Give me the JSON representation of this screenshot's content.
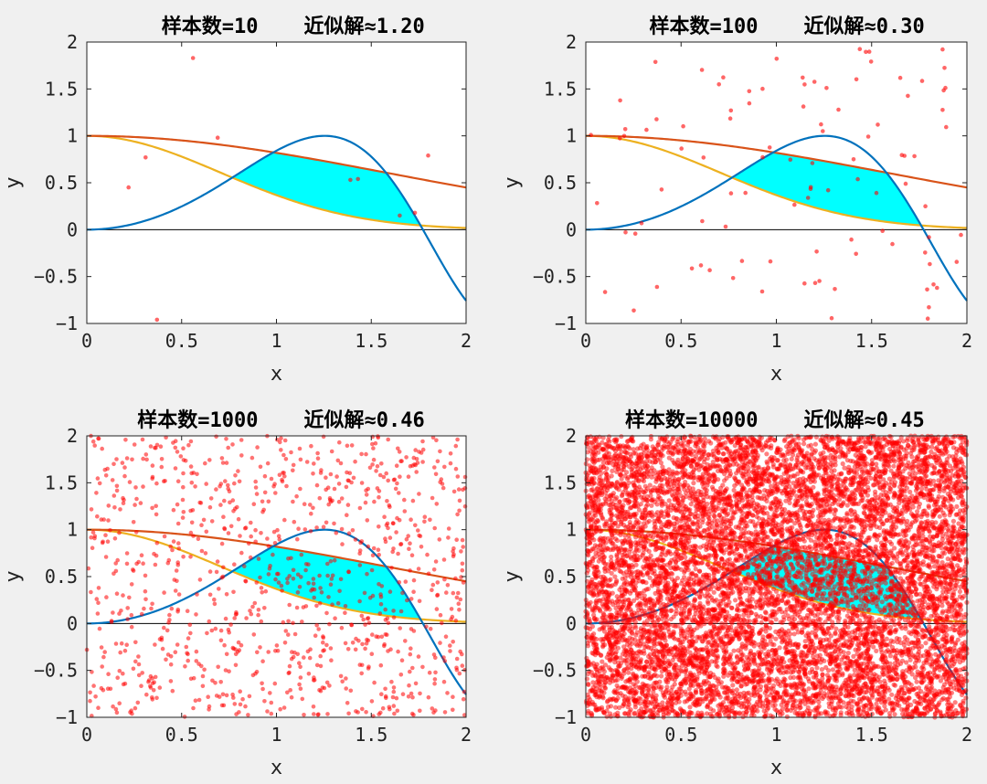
{
  "colors": {
    "background": "#f0f0f0",
    "axes_bg": "#ffffff",
    "target_curve": "#0072BD",
    "upper_curve": "#D95319",
    "lower_curve": "#EDB120",
    "fill_region": "#00FFFF",
    "sample_points": "#FF0000",
    "zero_line": "#000000"
  },
  "chart_data": [
    {
      "type": "scatter",
      "title_left": "样本数=10",
      "title_right": "近似解≈1.20",
      "samples": 10,
      "estimate": 1.2,
      "xlabel": "x",
      "ylabel": "y",
      "xlim": [
        0,
        2
      ],
      "ylim": [
        -1,
        2
      ],
      "xticks": [
        "0",
        "0.5",
        "1",
        "1.5",
        "2"
      ],
      "yticks": [
        "-1",
        "-0.5",
        "0",
        "0.5",
        "1",
        "1.5",
        "2"
      ],
      "grid": false,
      "curves": [
        "y = sin(x^2)·...",
        "upper",
        "lower"
      ],
      "points": [
        [
          0.22,
          0.45
        ],
        [
          0.31,
          0.77
        ],
        [
          0.37,
          -0.96
        ],
        [
          0.56,
          1.83
        ],
        [
          0.69,
          0.98
        ],
        [
          1.39,
          0.53
        ],
        [
          1.43,
          0.54
        ],
        [
          1.65,
          0.15
        ],
        [
          1.73,
          0.18
        ],
        [
          1.8,
          0.79
        ]
      ]
    },
    {
      "type": "scatter",
      "title_left": "样本数=100",
      "title_right": "近似解≈0.30",
      "samples": 100,
      "estimate": 0.3,
      "xlabel": "x",
      "ylabel": "y",
      "xlim": [
        0,
        2
      ],
      "ylim": [
        -1,
        2
      ],
      "xticks": [
        "0",
        "0.5",
        "1",
        "1.5",
        "2"
      ],
      "yticks": [
        "-1",
        "-0.5",
        "0",
        "0.5",
        "1",
        "1.5",
        "2"
      ],
      "grid": false
    },
    {
      "type": "scatter",
      "title_left": "样本数=1000",
      "title_right": "近似解≈0.46",
      "samples": 1000,
      "estimate": 0.46,
      "xlabel": "x",
      "ylabel": "y",
      "xlim": [
        0,
        2
      ],
      "ylim": [
        -1,
        2
      ],
      "xticks": [
        "0",
        "0.5",
        "1",
        "1.5",
        "2"
      ],
      "yticks": [
        "-1",
        "-0.5",
        "0",
        "0.5",
        "1",
        "1.5",
        "2"
      ],
      "grid": false
    },
    {
      "type": "scatter",
      "title_left": "样本数=10000",
      "title_right": "近似解≈0.45",
      "samples": 10000,
      "estimate": 0.45,
      "xlabel": "x",
      "ylabel": "y",
      "xlim": [
        0,
        2
      ],
      "ylim": [
        -1,
        2
      ],
      "xticks": [
        "0",
        "0.5",
        "1",
        "1.5",
        "2"
      ],
      "yticks": [
        "-1",
        "-0.5",
        "0",
        "0.5",
        "1",
        "1.5",
        "2"
      ],
      "grid": false
    }
  ]
}
